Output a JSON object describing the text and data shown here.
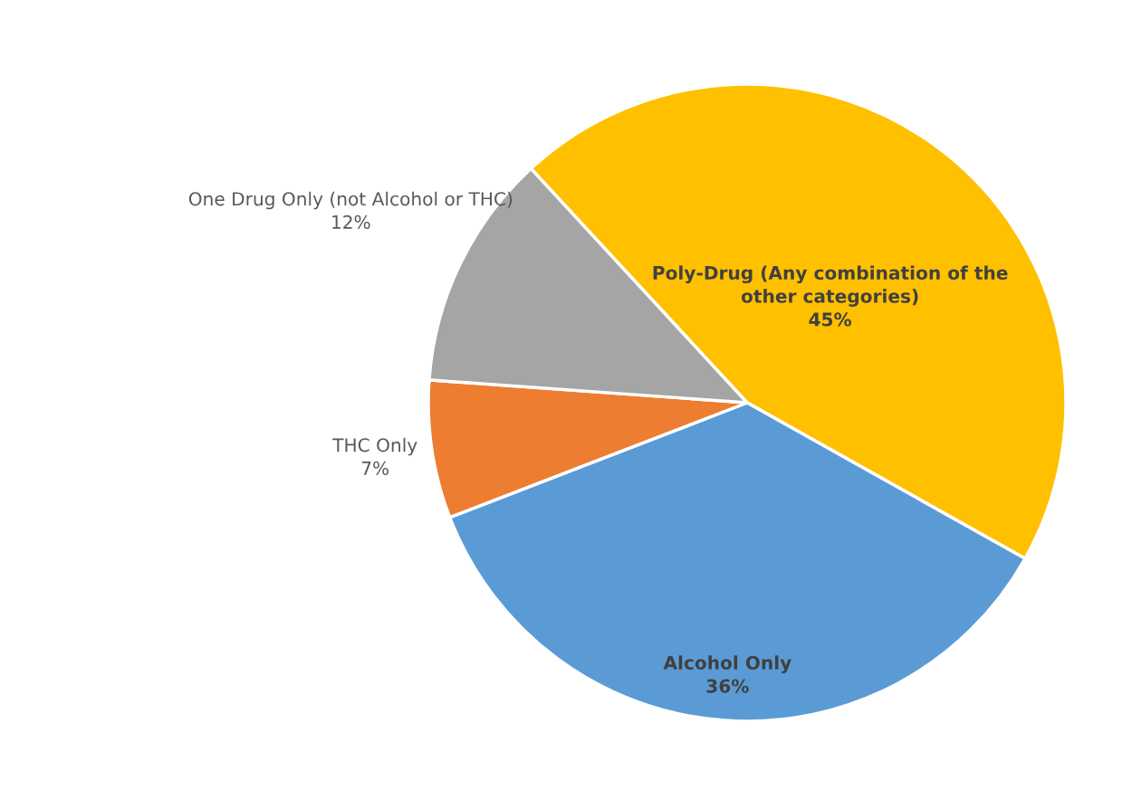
{
  "chart_data": {
    "type": "pie",
    "categories": [
      "Poly-Drug (Any combination of the\nother categories)",
      "Alcohol Only",
      "THC Only",
      "One Drug Only (not Alcohol or THC)"
    ],
    "values": [
      45,
      36,
      7,
      12
    ],
    "colors": [
      "#ffc000",
      "#5b9bd5",
      "#ed7d31",
      "#a5a5a5"
    ],
    "value_labels": [
      "45%",
      "36%",
      "7%",
      "12%"
    ]
  }
}
